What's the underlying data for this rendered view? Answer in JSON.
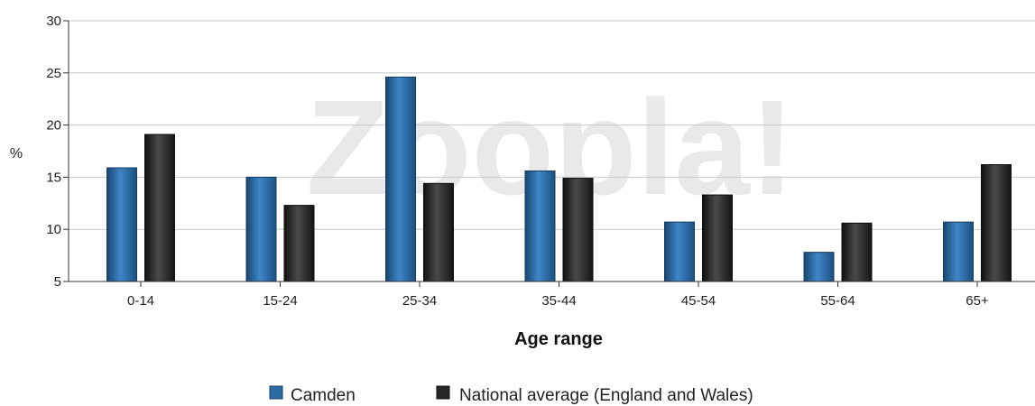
{
  "watermark": "Zoopla!",
  "chart_data": {
    "type": "bar",
    "title": "",
    "xlabel": "Age range",
    "ylabel": "%",
    "ylim": [
      5,
      30
    ],
    "yticks": [
      5,
      10,
      15,
      20,
      25,
      30
    ],
    "grid": true,
    "legend_position": "bottom",
    "categories": [
      "0-14",
      "15-24",
      "25-34",
      "35-44",
      "45-54",
      "55-64",
      "65+"
    ],
    "series": [
      {
        "name": "Camden",
        "color": "#2e6aa6",
        "values": [
          15.9,
          15.0,
          24.6,
          15.6,
          10.7,
          7.8,
          10.7
        ]
      },
      {
        "name": "National average (England and Wales)",
        "color": "#262626",
        "values": [
          19.1,
          12.3,
          14.4,
          14.9,
          13.3,
          10.6,
          16.2
        ]
      }
    ]
  }
}
